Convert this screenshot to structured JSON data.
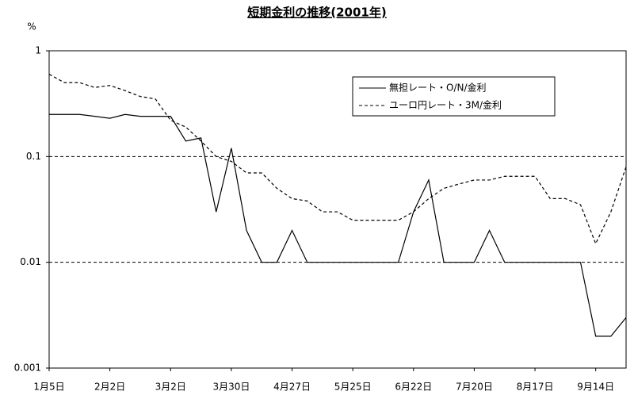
{
  "chart_data": {
    "type": "line",
    "title": "短期金利の推移(2001年)",
    "y_label": "%",
    "categories": [
      "1月5日",
      null,
      null,
      null,
      "2月2日",
      null,
      null,
      null,
      "3月2日",
      null,
      null,
      null,
      "3月30日",
      null,
      null,
      null,
      "4月27日",
      null,
      null,
      null,
      "5月25日",
      null,
      null,
      null,
      "6月22日",
      null,
      null,
      null,
      "7月20日",
      null,
      null,
      null,
      "8月17日",
      null,
      null,
      null,
      "9月14日",
      null,
      null
    ],
    "series": [
      {
        "name": "無担レート・O/N/金利",
        "color": "#000000",
        "dash": "solid",
        "values": [
          0.25,
          0.25,
          0.25,
          0.24,
          0.23,
          0.25,
          0.24,
          0.24,
          0.24,
          0.14,
          0.15,
          0.03,
          0.12,
          0.02,
          0.01,
          0.01,
          0.02,
          0.01,
          0.01,
          0.01,
          0.01,
          0.01,
          0.01,
          0.01,
          0.03,
          0.06,
          0.01,
          0.01,
          0.01,
          0.02,
          0.01,
          0.01,
          0.01,
          0.01,
          0.01,
          0.01,
          0.002,
          0.002,
          0.003
        ]
      },
      {
        "name": "ユーロ円レート・3M/金利",
        "color": "#000000",
        "dash": "dashed",
        "values": [
          0.6,
          0.5,
          0.5,
          0.45,
          0.47,
          0.42,
          0.37,
          0.35,
          0.22,
          0.19,
          0.14,
          0.1,
          0.09,
          0.07,
          0.07,
          0.05,
          0.04,
          0.038,
          0.03,
          0.03,
          0.025,
          0.025,
          0.025,
          0.025,
          0.03,
          0.04,
          0.05,
          0.055,
          0.06,
          0.06,
          0.065,
          0.065,
          0.065,
          0.04,
          0.04,
          0.035,
          0.015,
          0.03,
          0.08
        ]
      }
    ],
    "yscale": "log",
    "ylim": [
      0.001,
      1
    ],
    "yticks": [
      0.001,
      0.01,
      0.1,
      1
    ],
    "grid": true,
    "legend": "upper right"
  }
}
